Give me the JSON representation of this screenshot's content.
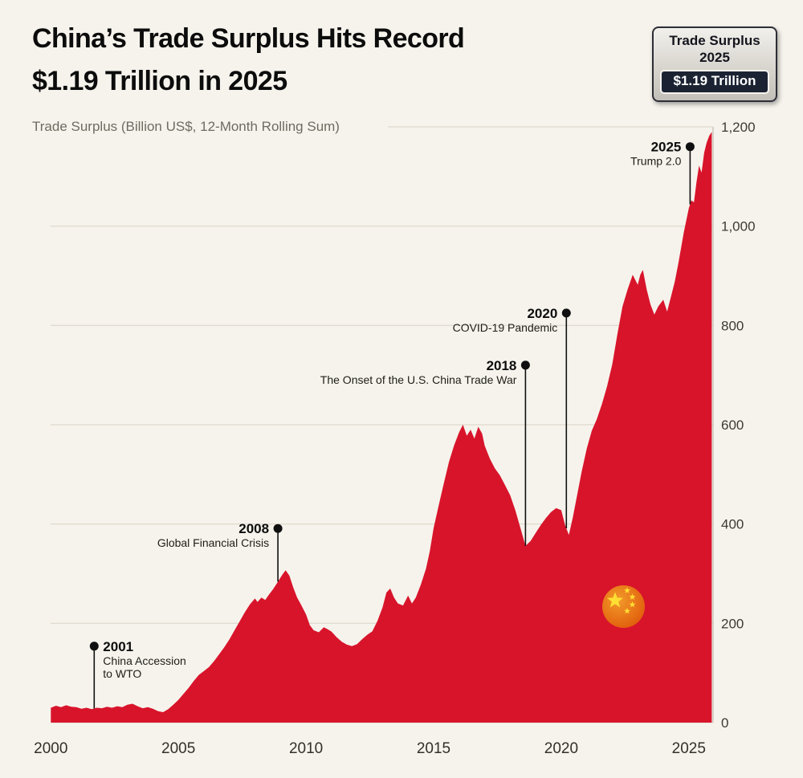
{
  "header": {
    "title_line1": "China’s Trade Surplus Hits Record",
    "title_line2": "$1.19 Trillion in 2025",
    "badge": {
      "label_line1": "Trade Surplus",
      "label_line2": "2025",
      "value": "$1.19 Trillion"
    }
  },
  "chart_data": {
    "type": "area",
    "title": "China’s Trade Surplus Hits Record $1.19 Trillion in 2025",
    "subtitle": "Trade Surplus (Billion US$, 12-Month Rolling Sum)",
    "xlabel": "",
    "ylabel": "Trade Surplus (Billion US$, 12-Month Rolling Sum)",
    "x_range": [
      2000,
      2026
    ],
    "ylim": [
      0,
      1200
    ],
    "grid": "horizontal",
    "legend": "none",
    "area_color": "#d8142b",
    "y_ticks": [
      {
        "value": 0,
        "label": "0"
      },
      {
        "value": 200,
        "label": "200"
      },
      {
        "value": 400,
        "label": "400"
      },
      {
        "value": 600,
        "label": "600"
      },
      {
        "value": 800,
        "label": "800"
      },
      {
        "value": 1000,
        "label": "1,000"
      },
      {
        "value": 1200,
        "label": "1,200"
      }
    ],
    "x_ticks": [
      {
        "value": 2000,
        "label": "2000"
      },
      {
        "value": 2005,
        "label": "2005"
      },
      {
        "value": 2010,
        "label": "2010"
      },
      {
        "value": 2015,
        "label": "2015"
      },
      {
        "value": 2020,
        "label": "2020"
      },
      {
        "value": 2025,
        "label": "2025"
      }
    ],
    "annotations": [
      {
        "year_label": "2001",
        "lines": [
          "China Accession",
          "to WTO"
        ],
        "x": 2001.7,
        "dot_value": 154,
        "side": "right"
      },
      {
        "year_label": "2008",
        "lines": [
          "Global Financial Crisis"
        ],
        "x": 2008.9,
        "dot_value": 391,
        "side": "left"
      },
      {
        "year_label": "2018",
        "lines": [
          "The Onset of the U.S. China Trade War"
        ],
        "x": 2018.6,
        "dot_value": 720,
        "side": "left"
      },
      {
        "year_label": "2020",
        "lines": [
          "COVID-19 Pandemic"
        ],
        "x": 2020.2,
        "dot_value": 825,
        "side": "left"
      },
      {
        "year_label": "2025",
        "lines": [
          "Trump 2.0"
        ],
        "x": 2025.05,
        "dot_value": 1160,
        "side": "left"
      }
    ],
    "points": [
      [
        2000.0,
        30
      ],
      [
        2000.2,
        34
      ],
      [
        2000.4,
        31
      ],
      [
        2000.6,
        35
      ],
      [
        2000.8,
        32
      ],
      [
        2001.0,
        31
      ],
      [
        2001.2,
        28
      ],
      [
        2001.4,
        30
      ],
      [
        2001.6,
        27
      ],
      [
        2001.8,
        30
      ],
      [
        2002.0,
        29
      ],
      [
        2002.2,
        32
      ],
      [
        2002.4,
        30
      ],
      [
        2002.6,
        33
      ],
      [
        2002.8,
        31
      ],
      [
        2003.0,
        36
      ],
      [
        2003.2,
        38
      ],
      [
        2003.4,
        33
      ],
      [
        2003.6,
        29
      ],
      [
        2003.8,
        31
      ],
      [
        2004.0,
        28
      ],
      [
        2004.2,
        23
      ],
      [
        2004.4,
        21
      ],
      [
        2004.6,
        27
      ],
      [
        2004.8,
        36
      ],
      [
        2005.0,
        46
      ],
      [
        2005.2,
        58
      ],
      [
        2005.4,
        70
      ],
      [
        2005.6,
        84
      ],
      [
        2005.8,
        96
      ],
      [
        2006.0,
        104
      ],
      [
        2006.2,
        112
      ],
      [
        2006.4,
        124
      ],
      [
        2006.6,
        138
      ],
      [
        2006.8,
        152
      ],
      [
        2007.0,
        168
      ],
      [
        2007.2,
        186
      ],
      [
        2007.4,
        204
      ],
      [
        2007.6,
        222
      ],
      [
        2007.8,
        238
      ],
      [
        2008.0,
        250
      ],
      [
        2008.1,
        243
      ],
      [
        2008.25,
        252
      ],
      [
        2008.4,
        247
      ],
      [
        2008.55,
        258
      ],
      [
        2008.7,
        268
      ],
      [
        2008.85,
        280
      ],
      [
        2009.0,
        292
      ],
      [
        2009.1,
        300
      ],
      [
        2009.2,
        307
      ],
      [
        2009.35,
        296
      ],
      [
        2009.5,
        272
      ],
      [
        2009.65,
        252
      ],
      [
        2009.8,
        238
      ],
      [
        2010.0,
        218
      ],
      [
        2010.15,
        196
      ],
      [
        2010.3,
        186
      ],
      [
        2010.5,
        182
      ],
      [
        2010.7,
        192
      ],
      [
        2010.85,
        188
      ],
      [
        2011.0,
        183
      ],
      [
        2011.2,
        172
      ],
      [
        2011.4,
        163
      ],
      [
        2011.6,
        157
      ],
      [
        2011.8,
        154
      ],
      [
        2012.0,
        158
      ],
      [
        2012.2,
        168
      ],
      [
        2012.4,
        177
      ],
      [
        2012.6,
        184
      ],
      [
        2012.8,
        205
      ],
      [
        2013.0,
        232
      ],
      [
        2013.15,
        262
      ],
      [
        2013.3,
        270
      ],
      [
        2013.45,
        252
      ],
      [
        2013.6,
        240
      ],
      [
        2013.8,
        236
      ],
      [
        2014.0,
        256
      ],
      [
        2014.15,
        240
      ],
      [
        2014.3,
        252
      ],
      [
        2014.5,
        278
      ],
      [
        2014.7,
        310
      ],
      [
        2014.85,
        345
      ],
      [
        2015.0,
        392
      ],
      [
        2015.2,
        438
      ],
      [
        2015.4,
        482
      ],
      [
        2015.6,
        525
      ],
      [
        2015.8,
        558
      ],
      [
        2016.0,
        585
      ],
      [
        2016.15,
        600
      ],
      [
        2016.3,
        578
      ],
      [
        2016.45,
        590
      ],
      [
        2016.6,
        572
      ],
      [
        2016.75,
        596
      ],
      [
        2016.9,
        582
      ],
      [
        2017.0,
        558
      ],
      [
        2017.2,
        532
      ],
      [
        2017.4,
        512
      ],
      [
        2017.6,
        498
      ],
      [
        2017.8,
        478
      ],
      [
        2018.0,
        458
      ],
      [
        2018.2,
        428
      ],
      [
        2018.4,
        392
      ],
      [
        2018.6,
        356
      ],
      [
        2018.8,
        366
      ],
      [
        2019.0,
        382
      ],
      [
        2019.2,
        398
      ],
      [
        2019.4,
        412
      ],
      [
        2019.6,
        424
      ],
      [
        2019.8,
        432
      ],
      [
        2020.0,
        428
      ],
      [
        2020.15,
        398
      ],
      [
        2020.3,
        378
      ],
      [
        2020.45,
        412
      ],
      [
        2020.6,
        452
      ],
      [
        2020.8,
        505
      ],
      [
        2021.0,
        552
      ],
      [
        2021.2,
        588
      ],
      [
        2021.4,
        612
      ],
      [
        2021.6,
        642
      ],
      [
        2021.8,
        678
      ],
      [
        2022.0,
        722
      ],
      [
        2022.2,
        782
      ],
      [
        2022.4,
        838
      ],
      [
        2022.6,
        872
      ],
      [
        2022.8,
        902
      ],
      [
        2023.0,
        882
      ],
      [
        2023.1,
        902
      ],
      [
        2023.2,
        912
      ],
      [
        2023.35,
        872
      ],
      [
        2023.5,
        842
      ],
      [
        2023.65,
        822
      ],
      [
        2023.8,
        838
      ],
      [
        2024.0,
        852
      ],
      [
        2024.15,
        828
      ],
      [
        2024.3,
        858
      ],
      [
        2024.45,
        888
      ],
      [
        2024.6,
        928
      ],
      [
        2024.8,
        986
      ],
      [
        2025.0,
        1036
      ],
      [
        2025.1,
        1052
      ],
      [
        2025.2,
        1048
      ],
      [
        2025.3,
        1088
      ],
      [
        2025.4,
        1122
      ],
      [
        2025.5,
        1108
      ],
      [
        2025.6,
        1148
      ],
      [
        2025.7,
        1168
      ],
      [
        2025.8,
        1182
      ],
      [
        2025.9,
        1190
      ]
    ],
    "flag_icon": {
      "name": "china-flag-icon",
      "circle_color": "#e05a0a",
      "star_color": "#ffde33"
    }
  }
}
